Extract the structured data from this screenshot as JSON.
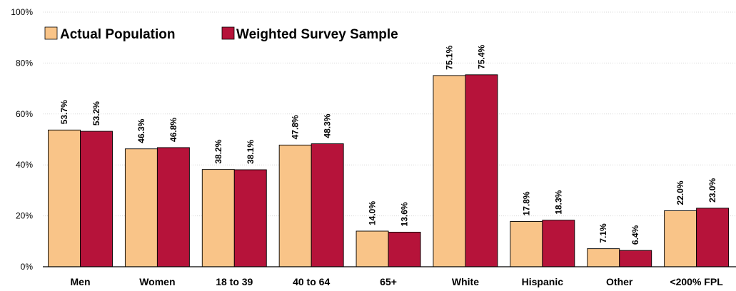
{
  "chart_data": {
    "type": "bar",
    "categories": [
      "Men",
      "Women",
      "18 to 39",
      "40 to 64",
      "65+",
      "White",
      "Hispanic",
      "Other",
      "<200% FPL"
    ],
    "series": [
      {
        "name": "Actual Population",
        "color": "#F9C488",
        "values": [
          53.7,
          46.3,
          38.2,
          47.8,
          14.0,
          75.1,
          17.8,
          7.1,
          22.0
        ],
        "labels": [
          "53.7%",
          "46.3%",
          "38.2%",
          "47.8%",
          "14.0%",
          "75.1%",
          "17.8%",
          "7.1%",
          "22.0%"
        ]
      },
      {
        "name": "Weighted Survey Sample",
        "color": "#B6133A",
        "values": [
          53.2,
          46.8,
          38.1,
          48.3,
          13.6,
          75.4,
          18.3,
          6.4,
          23.0
        ],
        "labels": [
          "53.2%",
          "46.8%",
          "38.1%",
          "48.3%",
          "13.6%",
          "75.4%",
          "18.3%",
          "6.4%",
          "23.0%"
        ]
      }
    ],
    "yticks": [
      "0%",
      "20%",
      "40%",
      "60%",
      "80%",
      "100%"
    ],
    "ylim": [
      0,
      100
    ],
    "grid": true,
    "legend_position": "top-left",
    "title": "",
    "xlabel": "",
    "ylabel": ""
  }
}
